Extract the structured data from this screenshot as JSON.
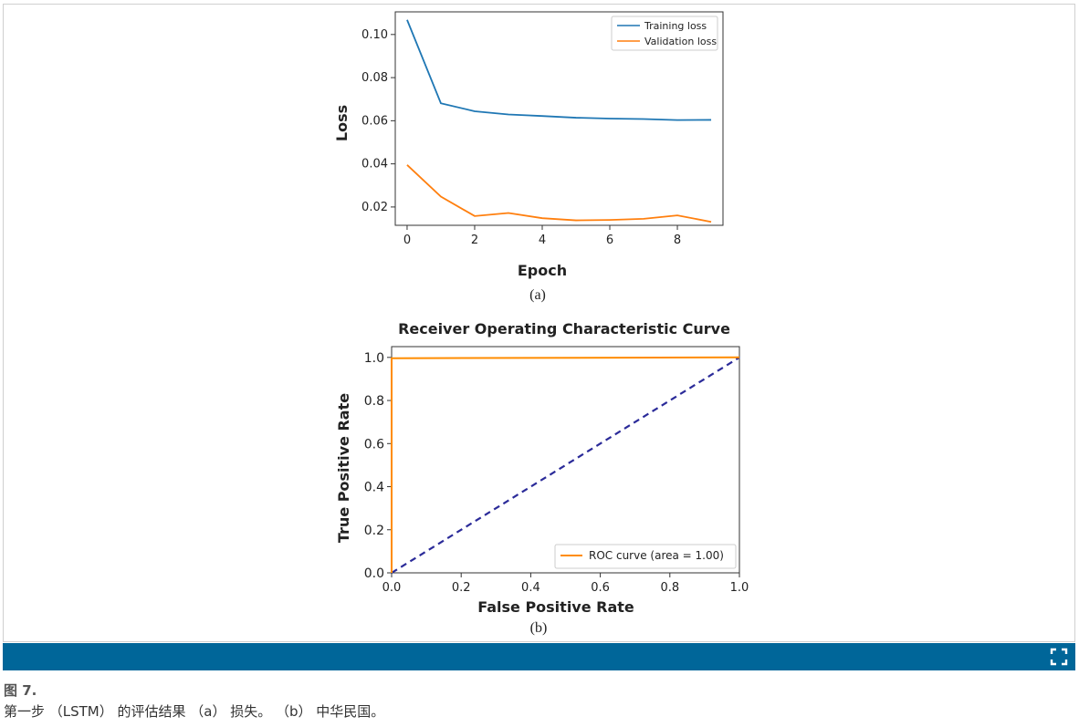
{
  "chart_data": [
    {
      "type": "line",
      "title": "",
      "xlabel": "Epoch",
      "ylabel": "Loss",
      "sublabel": "(a)",
      "x": [
        0,
        1,
        2,
        3,
        4,
        5,
        6,
        7,
        8,
        9
      ],
      "xticks": [
        "0",
        "2",
        "4",
        "6",
        "8"
      ],
      "yticks": [
        "0.02",
        "0.04",
        "0.06",
        "0.08",
        "0.10"
      ],
      "xlim": [
        -0.35,
        9.35
      ],
      "ylim": [
        0.0115,
        0.1105
      ],
      "legend_position": "top-right",
      "grid": false,
      "series": [
        {
          "name": "Training loss",
          "color": "#1f77b4",
          "values": [
            0.1068,
            0.0681,
            0.0644,
            0.0629,
            0.0622,
            0.0614,
            0.061,
            0.0608,
            0.0603,
            0.0604
          ]
        },
        {
          "name": "Validation loss",
          "color": "#ff7f0e",
          "values": [
            0.0395,
            0.0248,
            0.0158,
            0.0172,
            0.0148,
            0.0138,
            0.014,
            0.0145,
            0.0161,
            0.0131
          ]
        }
      ]
    },
    {
      "type": "line",
      "title": "Receiver Operating Characteristic Curve",
      "xlabel": "False Positive Rate",
      "ylabel": "True Positive Rate",
      "sublabel": "(b)",
      "xticks": [
        "0.0",
        "0.2",
        "0.4",
        "0.6",
        "0.8",
        "1.0"
      ],
      "yticks": [
        "0.0",
        "0.2",
        "0.4",
        "0.6",
        "0.8",
        "1.0"
      ],
      "xlim": [
        0.0,
        1.0
      ],
      "ylim": [
        0.0,
        1.05
      ],
      "legend_position": "lower-right",
      "grid": false,
      "series": [
        {
          "name": "ROC curve (area = 1.00)",
          "color": "#ff8c00",
          "x": [
            0.0,
            0.0,
            1.0
          ],
          "y": [
            0.0,
            0.996,
            1.0
          ]
        },
        {
          "name": "",
          "color": "#2b2b99",
          "style": "dashed",
          "x": [
            0.0,
            1.0
          ],
          "y": [
            0.0,
            1.0
          ]
        }
      ]
    }
  ],
  "caption": {
    "figure_label": "图 7.",
    "text": "第一步 （LSTM） 的评估结果 （a） 损失。 （b） 中华民国。"
  },
  "toolbar": {
    "bar_color": "#006699",
    "expand_icon": "expand-icon"
  }
}
